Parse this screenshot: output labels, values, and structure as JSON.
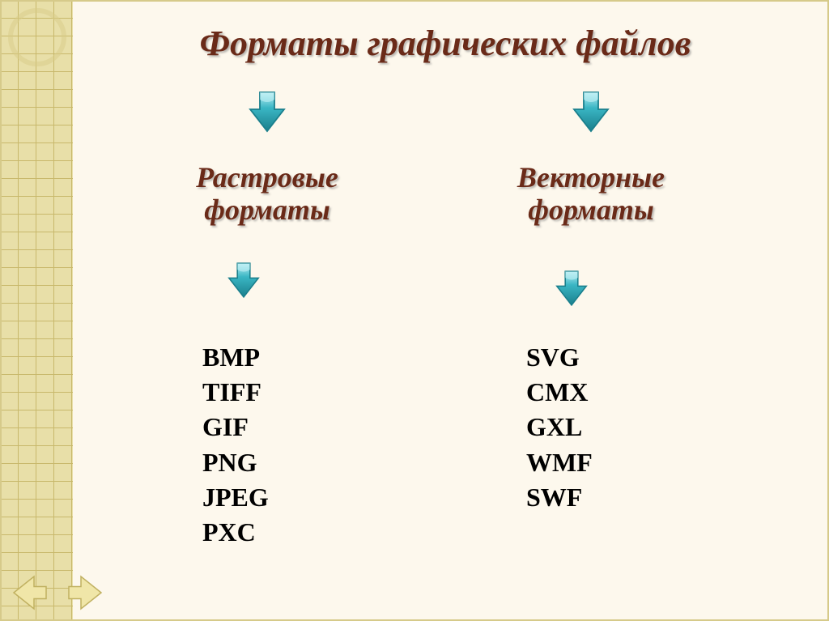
{
  "title": {
    "text": "Форматы графических файлов",
    "color": "#6a2a18",
    "fontsize": 44
  },
  "columns": {
    "raster": {
      "heading": "Растровые форматы",
      "heading_color": "#6a2a18",
      "heading_fontsize": 36,
      "items": [
        "BMP",
        "TIFF",
        "GIF",
        "PNG",
        "JPEG",
        "PXC"
      ],
      "item_color": "#000000",
      "item_fontsize": 32
    },
    "vector": {
      "heading": "Векторные форматы",
      "heading_color": "#6a2a18",
      "heading_fontsize": 36,
      "items": [
        "SVG",
        "CMX",
        "GXL",
        "WMF",
        "SWF"
      ],
      "item_color": "#000000",
      "item_fontsize": 32
    }
  },
  "arrow": {
    "fill": "#3ab6c4",
    "stroke": "#1a7f8c",
    "gloss": "#bff0f5"
  },
  "nav": {
    "prev_fill": "#f0e6a8",
    "prev_stroke": "#c0b060",
    "next_fill": "#f0e6a8",
    "next_stroke": "#c0b060"
  },
  "background": {
    "slide": "#fdf8ed",
    "pattern": "#e8dfa8",
    "grid": "#c8b86b"
  }
}
